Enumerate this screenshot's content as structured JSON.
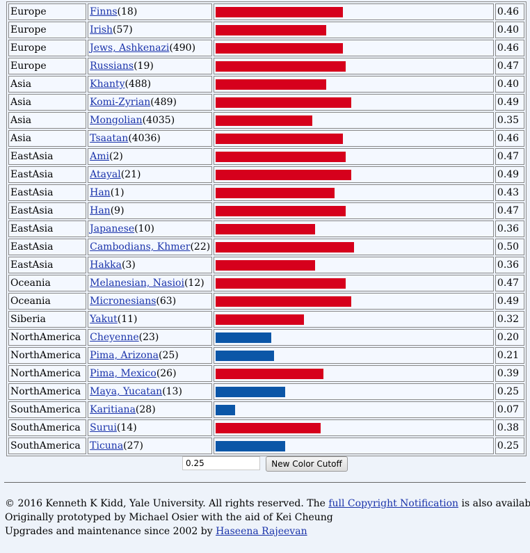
{
  "chart_data": {
    "type": "bar",
    "orientation": "horizontal",
    "xlim": [
      0,
      1
    ],
    "color_cutoff": 0.25,
    "colors": {
      "above_cutoff": "#d6001c",
      "below_cutoff": "#0b56a7"
    },
    "rows": [
      {
        "region": "Europe",
        "population": "Finns",
        "n": "(18)",
        "value": 0.46,
        "label": "0.46"
      },
      {
        "region": "Europe",
        "population": "Irish",
        "n": "(57)",
        "value": 0.4,
        "label": "0.40"
      },
      {
        "region": "Europe",
        "population": "Jews, Ashkenazi",
        "n": "(490)",
        "value": 0.46,
        "label": "0.46"
      },
      {
        "region": "Europe",
        "population": "Russians",
        "n": "(19)",
        "value": 0.47,
        "label": "0.47"
      },
      {
        "region": "Asia",
        "population": "Khanty",
        "n": "(488)",
        "value": 0.4,
        "label": "0.40"
      },
      {
        "region": "Asia",
        "population": "Komi-Zyrian",
        "n": "(489)",
        "value": 0.49,
        "label": "0.49"
      },
      {
        "region": "Asia",
        "population": "Mongolian",
        "n": "(4035)",
        "value": 0.35,
        "label": "0.35"
      },
      {
        "region": "Asia",
        "population": "Tsaatan",
        "n": "(4036)",
        "value": 0.46,
        "label": "0.46"
      },
      {
        "region": "EastAsia",
        "population": "Ami",
        "n": "(2)",
        "value": 0.47,
        "label": "0.47"
      },
      {
        "region": "EastAsia",
        "population": "Atayal",
        "n": "(21)",
        "value": 0.49,
        "label": "0.49"
      },
      {
        "region": "EastAsia",
        "population": "Han",
        "n": "(1)",
        "value": 0.43,
        "label": "0.43"
      },
      {
        "region": "EastAsia",
        "population": "Han",
        "n": "(9)",
        "value": 0.47,
        "label": "0.47"
      },
      {
        "region": "EastAsia",
        "population": "Japanese",
        "n": "(10)",
        "value": 0.36,
        "label": "0.36"
      },
      {
        "region": "EastAsia",
        "population": "Cambodians, Khmer",
        "n": "(22)",
        "value": 0.5,
        "label": "0.50"
      },
      {
        "region": "EastAsia",
        "population": "Hakka",
        "n": "(3)",
        "value": 0.36,
        "label": "0.36"
      },
      {
        "region": "Oceania",
        "population": "Melanesian, Nasioi",
        "n": "(12)",
        "value": 0.47,
        "label": "0.47"
      },
      {
        "region": "Oceania",
        "population": "Micronesians",
        "n": "(63)",
        "value": 0.49,
        "label": "0.49"
      },
      {
        "region": "Siberia",
        "population": "Yakut",
        "n": "(11)",
        "value": 0.32,
        "label": "0.32"
      },
      {
        "region": "NorthAmerica",
        "population": "Cheyenne",
        "n": "(23)",
        "value": 0.2,
        "label": "0.20"
      },
      {
        "region": "NorthAmerica",
        "population": "Pima, Arizona",
        "n": "(25)",
        "value": 0.21,
        "label": "0.21"
      },
      {
        "region": "NorthAmerica",
        "population": "Pima, Mexico",
        "n": "(26)",
        "value": 0.39,
        "label": "0.39"
      },
      {
        "region": "NorthAmerica",
        "population": "Maya, Yucatan",
        "n": "(13)",
        "value": 0.25,
        "label": "0.25"
      },
      {
        "region": "SouthAmerica",
        "population": "Karitiana",
        "n": "(28)",
        "value": 0.07,
        "label": "0.07"
      },
      {
        "region": "SouthAmerica",
        "population": "Surui",
        "n": "(14)",
        "value": 0.38,
        "label": "0.38"
      },
      {
        "region": "SouthAmerica",
        "population": "Ticuna",
        "n": "(27)",
        "value": 0.25,
        "label": "0.25"
      }
    ]
  },
  "controls": {
    "cutoff_value": "0.25",
    "button_label": "New Color Cutoff"
  },
  "footer": {
    "line1_prefix": "© 2016 Kenneth K Kidd, Yale University. All rights reserved. The ",
    "line1_link": "full Copyright Notification",
    "line1_suffix": " is also available.",
    "line2": "Originally prototyped by Michael Osier with the aid of Kei Cheung",
    "line3_prefix": "Upgrades and maintenance since 2002 by ",
    "line3_link": "Haseena Rajeevan"
  }
}
